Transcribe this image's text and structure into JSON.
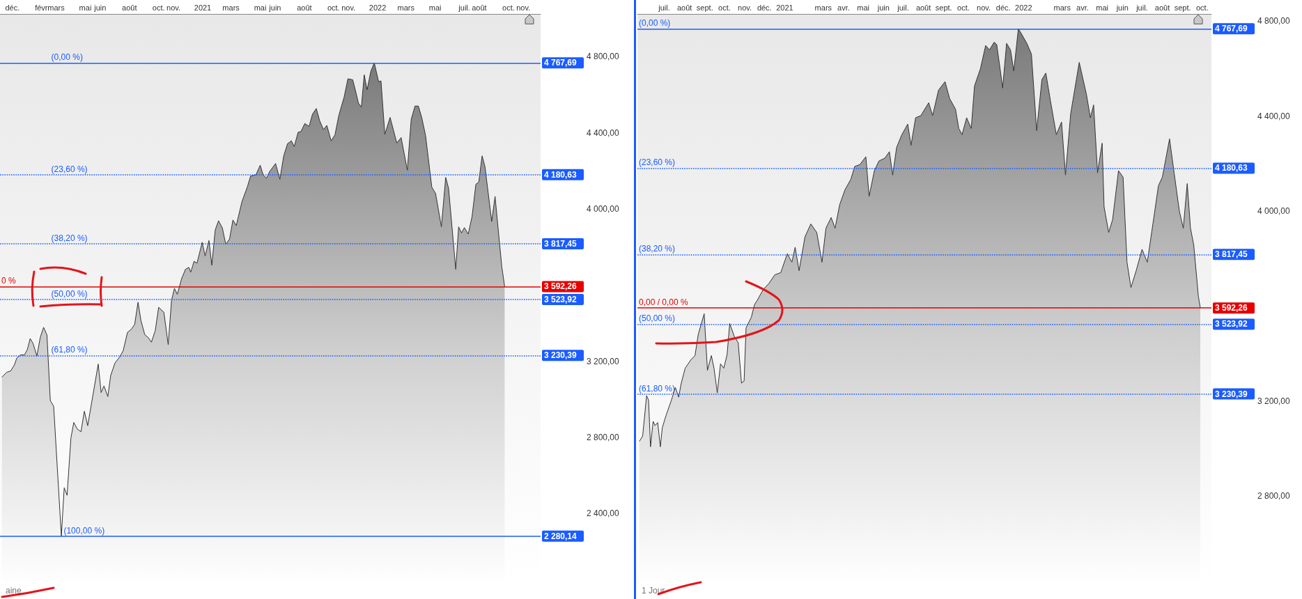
{
  "chart_data": [
    {
      "type": "area",
      "color": "#333333",
      "marker": "none",
      "line_style": "solid",
      "x": [
        "2019-11-09",
        "2019-11-19",
        "2019-11-27",
        "2019-12-05",
        "2019-12-10",
        "2019-12-18",
        "2019-12-26",
        "2020-01-01",
        "2020-01-07",
        "2020-01-13",
        "2020-01-21",
        "2020-01-28",
        "2020-02-04",
        "2020-02-11",
        "2020-02-18",
        "2020-02-25",
        "2020-03-12",
        "2020-03-18",
        "2020-03-24",
        "2020-04-01",
        "2020-04-07",
        "2020-04-14",
        "2020-04-22",
        "2020-04-29",
        "2020-05-06",
        "2020-05-28",
        "2020-06-03",
        "2020-06-09",
        "2020-06-17",
        "2020-06-23",
        "2020-07-02",
        "2020-07-12",
        "2020-07-19",
        "2020-07-28",
        "2020-08-05",
        "2020-08-12",
        "2020-08-19",
        "2020-08-25",
        "2020-09-02",
        "2020-09-09",
        "2020-09-16",
        "2020-09-24",
        "2020-10-01",
        "2020-10-12",
        "2020-10-21",
        "2020-10-28",
        "2020-11-03",
        "2020-11-09",
        "2020-11-18",
        "2020-11-26",
        "2020-12-03",
        "2020-12-07",
        "2020-12-14",
        "2020-12-20",
        "2020-12-31",
        "2021-01-06",
        "2021-01-14",
        "2021-01-20",
        "2021-01-27",
        "2021-02-03",
        "2021-02-11",
        "2021-02-18",
        "2021-02-26",
        "2021-03-05",
        "2021-03-12",
        "2021-03-24",
        "2021-04-04",
        "2021-04-11",
        "2021-04-22",
        "2021-05-01",
        "2021-05-07",
        "2021-05-14",
        "2021-05-21",
        "2021-06-02",
        "2021-06-11",
        "2021-06-19",
        "2021-06-27",
        "2021-07-05",
        "2021-07-11",
        "2021-07-19",
        "2021-07-25",
        "2021-08-02",
        "2021-08-11",
        "2021-08-18",
        "2021-08-26",
        "2021-09-02",
        "2021-09-10",
        "2021-09-17",
        "2021-09-26",
        "2021-10-04",
        "2021-10-12",
        "2021-10-23",
        "2021-10-31",
        "2021-11-10",
        "2021-11-15",
        "2021-11-22",
        "2021-11-28",
        "2021-12-04",
        "2021-12-10",
        "2021-12-18",
        "2021-12-25",
        "2022-01-03",
        "2022-01-08",
        "2022-01-16",
        "2022-01-27",
        "2022-02-10",
        "2022-02-19",
        "2022-03-04",
        "2022-03-12",
        "2022-03-20",
        "2022-03-27",
        "2022-04-03",
        "2022-04-11",
        "2022-04-24",
        "2022-05-02",
        "2022-05-14",
        "2022-05-23",
        "2022-05-29",
        "2022-06-13",
        "2022-06-19",
        "2022-06-25",
        "2022-07-01",
        "2022-07-09",
        "2022-07-17",
        "2022-07-25",
        "2022-07-31",
        "2022-08-07",
        "2022-08-13",
        "2022-08-27",
        "2022-09-03",
        "2022-09-17",
        "2022-09-23"
      ],
      "values": [
        3116,
        3142,
        3148,
        3180,
        3216,
        3233,
        3233,
        3261,
        3319,
        3293,
        3227,
        3325,
        3378,
        3338,
        2993,
        2963,
        2280.14,
        2535,
        2495,
        2797,
        2878,
        2844,
        2829,
        2937,
        2861,
        3185,
        3035,
        3070,
        3014,
        3125,
        3191,
        3223,
        3255,
        3351,
        3368,
        3393,
        3510,
        3415,
        3340,
        3325,
        3300,
        3361,
        3483,
        3457,
        3287,
        3521,
        3583,
        3551,
        3634,
        3683,
        3693,
        3668,
        3725,
        3715,
        3825,
        3753,
        3834,
        3704,
        3889,
        3938,
        3900,
        3815,
        3842,
        3942,
        3913,
        4040,
        4115,
        4173,
        4179,
        4230,
        4179,
        4162,
        4198,
        4239,
        4156,
        4279,
        4343,
        4358,
        4328,
        4403,
        4407,
        4449,
        4434,
        4498,
        4528,
        4464,
        4417,
        4439,
        4358,
        4390,
        4492,
        4588,
        4684,
        4679,
        4630,
        4556,
        4535,
        4705,
        4626,
        4726,
        4767.69,
        4669,
        4673,
        4392,
        4481,
        4347,
        4375,
        4204,
        4471,
        4541,
        4541,
        4481,
        4386,
        4115,
        4081,
        3906,
        4166,
        4109,
        3683,
        3906,
        3874,
        3902,
        3868,
        3960,
        4130,
        4141,
        4279,
        4222,
        3934,
        4066,
        3698,
        3592.26
      ],
      "xlim": [
        "2019-11-05",
        "2022-12-07"
      ],
      "ylim": [
        2016,
        5025
      ],
      "xticks": [
        {
          "value": "2019-12",
          "label": "déc."
        },
        {
          "value": "2020-02",
          "label": "févr."
        },
        {
          "value": "2020-03",
          "label": "mars"
        },
        {
          "value": "2020-05",
          "label": "mai"
        },
        {
          "value": "2020-06",
          "label": "juin"
        },
        {
          "value": "2020-08",
          "label": "août"
        },
        {
          "value": "2020-10",
          "label": "oct."
        },
        {
          "value": "2020-11",
          "label": "nov."
        },
        {
          "value": "2021-01",
          "label": "2021"
        },
        {
          "value": "2021-03",
          "label": "mars"
        },
        {
          "value": "2021-05",
          "label": "mai"
        },
        {
          "value": "2021-06",
          "label": "juin"
        },
        {
          "value": "2021-08",
          "label": "août"
        },
        {
          "value": "2021-10",
          "label": "oct."
        },
        {
          "value": "2021-11",
          "label": "nov."
        },
        {
          "value": "2022-01",
          "label": "2022"
        },
        {
          "value": "2022-03",
          "label": "mars"
        },
        {
          "value": "2022-05",
          "label": "mai"
        },
        {
          "value": "2022-07",
          "label": "juil."
        },
        {
          "value": "2022-08",
          "label": "août"
        },
        {
          "value": "2022-10",
          "label": "oct."
        },
        {
          "value": "2022-11",
          "label": "nov."
        }
      ],
      "yticks": [
        {
          "value": 2400,
          "label": "2 400,00"
        },
        {
          "value": 2800,
          "label": "2 800,00"
        },
        {
          "value": 3200,
          "label": "3 200,00"
        },
        {
          "value": 4000,
          "label": "4 000,00"
        },
        {
          "value": 4400,
          "label": "4 400,00"
        },
        {
          "value": 4800,
          "label": "4 800,00"
        }
      ],
      "ref_lines": [
        {
          "axis": "y",
          "value": 4767.69,
          "label": "4 767,69",
          "color": "#1a5cff",
          "line_style": "solid"
        },
        {
          "axis": "y",
          "value": 4180.63,
          "label": "4 180,63",
          "color": "#1a5cff",
          "line_style": "dotted"
        },
        {
          "axis": "y",
          "value": 3817.45,
          "label": "3 817,45",
          "color": "#1a5cff",
          "line_style": "dotted"
        },
        {
          "axis": "y",
          "value": 3592.26,
          "label": "3 592,26",
          "color": "#e60000",
          "line_style": "solid"
        },
        {
          "axis": "y",
          "value": 3523.92,
          "label": "3 523,92",
          "color": "#1a5cff",
          "line_style": "dotted"
        },
        {
          "axis": "y",
          "value": 3230.39,
          "label": "3 230,39",
          "color": "#1a5cff",
          "line_style": "dotted"
        },
        {
          "axis": "y",
          "value": 2280.14,
          "label": "2 280,14",
          "color": "#1a5cff",
          "line_style": "solid"
        }
      ],
      "annotations": [
        "aine",
        {
          "text": "(0,00 %)",
          "x": "2020-02-17",
          "y": 4767.69
        },
        {
          "text": "(23,60 %)",
          "x": "2020-02-17",
          "y": 4180.63
        },
        {
          "text": "(38,20 %)",
          "x": "2020-02-17",
          "y": 3817.45
        },
        {
          "text": "0 %",
          "x": "2019-11-05",
          "y": 3592.26
        },
        {
          "text": "(50,00 %)",
          "x": "2020-02-17",
          "y": 3523.92
        },
        {
          "text": "(61,80 %)",
          "x": "2020-02-17",
          "y": 3230.39
        },
        {
          "text": "(100,00 %)",
          "x": "2020-03-14",
          "y": 2280.14
        }
      ]
    },
    {
      "type": "area",
      "color": "#333333",
      "marker": "none",
      "line_style": "solid",
      "x": [
        "2020-05-24",
        "2020-05-29",
        "2020-06-04",
        "2020-06-07",
        "2020-06-10",
        "2020-06-14",
        "2020-06-17",
        "2020-06-21",
        "2020-06-25",
        "2020-06-28",
        "2020-07-04",
        "2020-07-12",
        "2020-07-18",
        "2020-07-23",
        "2020-07-27",
        "2020-08-02",
        "2020-08-11",
        "2020-08-17",
        "2020-08-22",
        "2020-08-31",
        "2020-09-05",
        "2020-09-11",
        "2020-09-15",
        "2020-09-20",
        "2020-09-25",
        "2020-09-30",
        "2020-10-05",
        "2020-10-09",
        "2020-10-16",
        "2020-10-22",
        "2020-10-27",
        "2020-10-31",
        "2020-11-03",
        "2020-11-11",
        "2020-11-16",
        "2020-11-20",
        "2020-11-29",
        "2020-12-08",
        "2020-12-17",
        "2020-12-26",
        "2021-01-05",
        "2021-01-12",
        "2021-01-17",
        "2021-01-23",
        "2021-02-01",
        "2021-02-10",
        "2021-02-19",
        "2021-02-27",
        "2021-03-05",
        "2021-03-13",
        "2021-03-19",
        "2021-03-26",
        "2021-04-03",
        "2021-04-12",
        "2021-04-18",
        "2021-04-26",
        "2021-05-05",
        "2021-05-10",
        "2021-05-18",
        "2021-05-25",
        "2021-06-03",
        "2021-06-10",
        "2021-06-15",
        "2021-06-21",
        "2021-06-29",
        "2021-07-08",
        "2021-07-13",
        "2021-07-20",
        "2021-07-28",
        "2021-08-09",
        "2021-08-15",
        "2021-08-24",
        "2021-09-03",
        "2021-09-10",
        "2021-09-19",
        "2021-09-24",
        "2021-09-29",
        "2021-10-06",
        "2021-10-13",
        "2021-10-18",
        "2021-10-27",
        "2021-11-04",
        "2021-11-10",
        "2021-11-17",
        "2021-11-21",
        "2021-11-27",
        "2021-11-30",
        "2021-12-06",
        "2021-12-12",
        "2021-12-17",
        "2021-12-24",
        "2021-12-29",
        "2022-01-06",
        "2022-01-13",
        "2022-01-21",
        "2022-01-29",
        "2022-02-04",
        "2022-02-11",
        "2022-02-20",
        "2022-02-28",
        "2022-03-06",
        "2022-03-14",
        "2022-03-27",
        "2022-04-07",
        "2022-04-13",
        "2022-04-18",
        "2022-04-24",
        "2022-05-01",
        "2022-05-04",
        "2022-05-11",
        "2022-05-17",
        "2022-05-26",
        "2022-06-02",
        "2022-06-08",
        "2022-06-14",
        "2022-06-22",
        "2022-07-01",
        "2022-07-09",
        "2022-07-19",
        "2022-07-26",
        "2022-08-01",
        "2022-08-12",
        "2022-08-19",
        "2022-08-27",
        "2022-09-02",
        "2022-09-08",
        "2022-09-13",
        "2022-09-18",
        "2022-09-25",
        "2022-09-28"
      ],
      "values": [
        3031,
        3053,
        3223,
        3205,
        3008,
        3115,
        3097,
        3110,
        3008,
        3088,
        3142,
        3205,
        3258,
        3217,
        3276,
        3339,
        3375,
        3392,
        3482,
        3568,
        3330,
        3392,
        3339,
        3235,
        3357,
        3339,
        3396,
        3527,
        3473,
        3446,
        3276,
        3285,
        3509,
        3553,
        3607,
        3624,
        3669,
        3696,
        3732,
        3741,
        3821,
        3785,
        3848,
        3749,
        3892,
        3946,
        3910,
        3785,
        3928,
        3973,
        3928,
        4027,
        4089,
        4134,
        4188,
        4196,
        4229,
        4062,
        4170,
        4211,
        4223,
        4250,
        4152,
        4268,
        4322,
        4366,
        4277,
        4393,
        4402,
        4456,
        4402,
        4509,
        4545,
        4474,
        4429,
        4348,
        4322,
        4393,
        4348,
        4527,
        4599,
        4697,
        4679,
        4711,
        4701,
        4581,
        4518,
        4706,
        4679,
        4590,
        4767.69,
        4745,
        4706,
        4661,
        4339,
        4554,
        4581,
        4465,
        4322,
        4375,
        4152,
        4411,
        4626,
        4492,
        4393,
        4447,
        4161,
        4286,
        4018,
        3910,
        3964,
        4170,
        4143,
        3785,
        3678,
        3749,
        3839,
        3785,
        3973,
        4107,
        4143,
        4304,
        4161,
        4000,
        3928,
        4116,
        3928,
        3857,
        3642,
        3592.26
      ],
      "xlim": [
        "2020-05-21",
        "2022-10-15"
      ],
      "ylim": [
        2420,
        4830
      ],
      "xticks": [
        {
          "value": "2020-07",
          "label": "juil."
        },
        {
          "value": "2020-08",
          "label": "août"
        },
        {
          "value": "2020-09",
          "label": "sept."
        },
        {
          "value": "2020-10",
          "label": "oct."
        },
        {
          "value": "2020-11",
          "label": "nov."
        },
        {
          "value": "2020-12",
          "label": "déc."
        },
        {
          "value": "2021-01",
          "label": "2021"
        },
        {
          "value": "2021-03",
          "label": "mars"
        },
        {
          "value": "2021-04",
          "label": "avr."
        },
        {
          "value": "2021-05",
          "label": "mai"
        },
        {
          "value": "2021-06",
          "label": "juin"
        },
        {
          "value": "2021-07",
          "label": "juil."
        },
        {
          "value": "2021-08",
          "label": "août"
        },
        {
          "value": "2021-09",
          "label": "sept."
        },
        {
          "value": "2021-10",
          "label": "oct."
        },
        {
          "value": "2021-11",
          "label": "nov."
        },
        {
          "value": "2021-12",
          "label": "déc."
        },
        {
          "value": "2022-01",
          "label": "2022"
        },
        {
          "value": "2022-03",
          "label": "mars"
        },
        {
          "value": "2022-04",
          "label": "avr."
        },
        {
          "value": "2022-05",
          "label": "mai"
        },
        {
          "value": "2022-06",
          "label": "juin"
        },
        {
          "value": "2022-07",
          "label": "juil."
        },
        {
          "value": "2022-08",
          "label": "août"
        },
        {
          "value": "2022-09",
          "label": "sept."
        },
        {
          "value": "2022-10",
          "label": "oct."
        }
      ],
      "yticks": [
        {
          "value": 2800,
          "label": "2 800,00"
        },
        {
          "value": 3200,
          "label": "3 200,00"
        },
        {
          "value": 4000,
          "label": "4 000,00"
        },
        {
          "value": 4400,
          "label": "4 400,00"
        },
        {
          "value": 4800,
          "label": "4 800,00"
        }
      ],
      "ref_lines": [
        {
          "axis": "y",
          "value": 4767.69,
          "label": "4 767,69",
          "color": "#1a5cff",
          "line_style": "solid"
        },
        {
          "axis": "y",
          "value": 4180.63,
          "label": "4 180,63",
          "color": "#1a5cff",
          "line_style": "dotted"
        },
        {
          "axis": "y",
          "value": 3817.45,
          "label": "3 817,45",
          "color": "#1a5cff",
          "line_style": "dotted"
        },
        {
          "axis": "y",
          "value": 3592.26,
          "label": "3 592,26",
          "color": "#e60000",
          "line_style": "solid"
        },
        {
          "axis": "y",
          "value": 3523.92,
          "label": "3 523,92",
          "color": "#1a5cff",
          "line_style": "dotted"
        },
        {
          "axis": "y",
          "value": 3230.39,
          "label": "3 230,39",
          "color": "#1a5cff",
          "line_style": "dotted"
        }
      ],
      "annotations": [
        "1 Jour",
        {
          "text": "(0,00 %)",
          "x": "2020-05-21",
          "y": 4767.69
        },
        {
          "text": "(23,60 %)",
          "x": "2020-05-21",
          "y": 4180.63
        },
        {
          "text": "(38,20 %)",
          "x": "2020-05-21",
          "y": 3817.45
        },
        {
          "text": "0,00 / 0,00 %",
          "x": "2020-05-21",
          "y": 3592.26
        },
        {
          "text": "(50,00 %)",
          "x": "2020-05-21",
          "y": 3523.92
        },
        {
          "text": "(61,80 %)",
          "x": "2020-05-21",
          "y": 3230.39
        }
      ]
    }
  ]
}
